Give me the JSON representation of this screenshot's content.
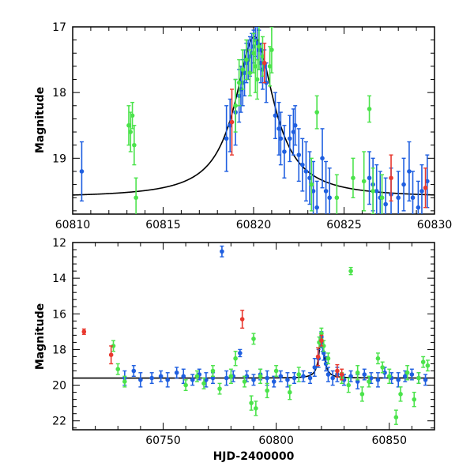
{
  "colors": {
    "blue": "#1f5fe0",
    "green": "#4be34b",
    "red": "#e8392f",
    "model": "#000000"
  },
  "chart_data": [
    {
      "type": "scatter",
      "ylabel": "Magnitude",
      "xlabel": "",
      "xlim": [
        60810,
        60830
      ],
      "ylim": [
        17.0,
        19.85
      ],
      "y_inverted": true,
      "xticks": [
        60810,
        60815,
        60820,
        60825,
        60830
      ],
      "yticks": [
        17,
        18,
        19
      ],
      "model": {
        "type": "lorentzian-peak",
        "t0": 60820.05,
        "baseline": 19.6,
        "peak": 17.15,
        "width": 1.3
      },
      "series": [
        {
          "color": "blue",
          "points": [
            [
              60810.5,
              19.2,
              0.45
            ],
            [
              60818.5,
              18.7,
              0.5
            ],
            [
              60818.7,
              18.5,
              0.4
            ],
            [
              60819.0,
              18.3,
              0.5
            ],
            [
              60819.2,
              18.05,
              0.4
            ],
            [
              60819.3,
              17.95,
              0.35
            ],
            [
              60819.4,
              17.85,
              0.35
            ],
            [
              60819.5,
              17.7,
              0.35
            ],
            [
              60819.6,
              17.55,
              0.3
            ],
            [
              60819.7,
              17.5,
              0.3
            ],
            [
              60819.8,
              17.45,
              0.3
            ],
            [
              60819.9,
              17.4,
              0.3
            ],
            [
              60820.0,
              17.3,
              0.25
            ],
            [
              60820.1,
              17.2,
              0.25
            ],
            [
              60820.2,
              17.25,
              0.25
            ],
            [
              60820.3,
              17.35,
              0.3
            ],
            [
              60820.4,
              17.55,
              0.3
            ],
            [
              60820.5,
              17.65,
              0.3
            ],
            [
              60820.6,
              17.6,
              0.25
            ],
            [
              60820.7,
              17.85,
              0.3
            ],
            [
              60821.2,
              18.35,
              0.35
            ],
            [
              60821.4,
              18.55,
              0.4
            ],
            [
              60821.5,
              18.7,
              0.4
            ],
            [
              60821.7,
              18.9,
              0.4
            ],
            [
              60822.0,
              18.7,
              0.35
            ],
            [
              60822.2,
              18.6,
              0.35
            ],
            [
              60822.3,
              18.5,
              0.3
            ],
            [
              60822.5,
              18.95,
              0.4
            ],
            [
              60822.7,
              19.1,
              0.4
            ],
            [
              60822.9,
              19.2,
              0.45
            ],
            [
              60823.1,
              19.3,
              0.4
            ],
            [
              60823.3,
              19.5,
              0.45
            ],
            [
              60823.5,
              19.75,
              0.4
            ],
            [
              60823.8,
              19.0,
              0.45
            ],
            [
              60824.0,
              19.5,
              0.45
            ],
            [
              60824.2,
              19.6,
              0.45
            ],
            [
              60826.4,
              19.3,
              0.4
            ],
            [
              60826.6,
              19.4,
              0.4
            ],
            [
              60826.8,
              19.5,
              0.4
            ],
            [
              60827.0,
              19.6,
              0.4
            ],
            [
              60827.3,
              19.7,
              0.4
            ],
            [
              60827.6,
              19.55,
              0.4
            ],
            [
              60828.0,
              19.6,
              0.4
            ],
            [
              60828.3,
              19.4,
              0.4
            ],
            [
              60828.6,
              19.2,
              0.45
            ],
            [
              60828.8,
              19.6,
              0.4
            ],
            [
              60829.1,
              19.75,
              0.4
            ],
            [
              60829.3,
              19.5,
              0.4
            ],
            [
              60829.6,
              19.35,
              0.4
            ]
          ]
        },
        {
          "color": "green",
          "points": [
            [
              60813.1,
              18.5,
              0.3
            ],
            [
              60813.2,
              18.6,
              0.3
            ],
            [
              60813.3,
              18.35,
              0.2
            ],
            [
              60813.4,
              18.8,
              0.3
            ],
            [
              60813.5,
              19.6,
              0.3
            ],
            [
              60819.0,
              18.2,
              0.4
            ],
            [
              60819.2,
              17.85,
              0.35
            ],
            [
              60819.4,
              17.65,
              0.3
            ],
            [
              60819.6,
              17.5,
              0.3
            ],
            [
              60819.8,
              17.7,
              0.35
            ],
            [
              60820.0,
              17.4,
              0.3
            ],
            [
              60820.1,
              17.6,
              0.4
            ],
            [
              60820.2,
              17.8,
              0.3
            ],
            [
              60820.3,
              17.3,
              0.35
            ],
            [
              60820.5,
              17.45,
              0.3
            ],
            [
              60820.9,
              17.6,
              0.3
            ],
            [
              60821.0,
              17.35,
              0.35
            ],
            [
              60823.2,
              19.4,
              0.4
            ],
            [
              60823.5,
              18.3,
              0.25
            ],
            [
              60824.6,
              19.6,
              0.35
            ],
            [
              60825.5,
              19.3,
              0.3
            ],
            [
              60826.1,
              19.35,
              0.45
            ],
            [
              60826.4,
              18.25,
              0.2
            ],
            [
              60826.6,
              19.5,
              0.35
            ],
            [
              60827.1,
              19.6,
              0.35
            ]
          ]
        },
        {
          "color": "red",
          "points": [
            [
              60818.8,
              18.45,
              0.5
            ],
            [
              60820.6,
              17.55,
              0.3
            ],
            [
              60827.6,
              19.3,
              0.35
            ],
            [
              60829.5,
              19.45,
              0.3
            ]
          ]
        }
      ]
    },
    {
      "type": "scatter",
      "ylabel": "Magnitude",
      "xlabel": "HJD-2400000",
      "xlim": [
        60710,
        60870
      ],
      "ylim": [
        12,
        22.5
      ],
      "y_inverted": true,
      "xticks": [
        60750,
        60800,
        60850
      ],
      "yticks": [
        12,
        14,
        16,
        18,
        20,
        22
      ],
      "model": {
        "type": "lorentzian-peak",
        "t0": 60820.05,
        "baseline": 19.6,
        "peak": 17.15,
        "width": 1.3
      },
      "series": [
        {
          "color": "blue",
          "points": [
            [
              60733,
              19.6,
              0.4
            ],
            [
              60737,
              19.2,
              0.3
            ],
            [
              60740,
              19.7,
              0.4
            ],
            [
              60745,
              19.6,
              0.3
            ],
            [
              60749,
              19.5,
              0.3
            ],
            [
              60752,
              19.7,
              0.4
            ],
            [
              60756,
              19.3,
              0.3
            ],
            [
              60759,
              19.5,
              0.4
            ],
            [
              60763,
              19.7,
              0.3
            ],
            [
              60766,
              19.4,
              0.3
            ],
            [
              60769,
              19.7,
              0.4
            ],
            [
              60772,
              19.6,
              0.3
            ],
            [
              60776,
              12.5,
              0.3
            ],
            [
              60778,
              19.6,
              0.4
            ],
            [
              60781,
              19.5,
              0.3
            ],
            [
              60784,
              18.2,
              0.2
            ],
            [
              60787,
              19.5,
              0.3
            ],
            [
              60790,
              19.7,
              0.3
            ],
            [
              60793,
              19.4,
              0.3
            ],
            [
              60796,
              19.6,
              0.4
            ],
            [
              60799,
              19.8,
              0.3
            ],
            [
              60802,
              19.5,
              0.3
            ],
            [
              60805,
              19.7,
              0.4
            ],
            [
              60808,
              19.6,
              0.3
            ],
            [
              60812,
              19.5,
              0.3
            ],
            [
              60815,
              19.6,
              0.3
            ],
            [
              60817,
              19.0,
              0.5
            ],
            [
              60818.7,
              18.5,
              0.5
            ],
            [
              60819.5,
              17.6,
              0.3
            ],
            [
              60820,
              17.3,
              0.3
            ],
            [
              60820.5,
              17.8,
              0.3
            ],
            [
              60821,
              18.2,
              0.4
            ],
            [
              60822,
              18.8,
              0.4
            ],
            [
              60823,
              19.4,
              0.4
            ],
            [
              60825,
              19.6,
              0.4
            ],
            [
              60827,
              19.4,
              0.4
            ],
            [
              60830,
              19.7,
              0.3
            ],
            [
              60833,
              19.5,
              0.3
            ],
            [
              60836,
              19.8,
              0.4
            ],
            [
              60839,
              19.4,
              0.3
            ],
            [
              60842,
              19.6,
              0.3
            ],
            [
              60845,
              19.7,
              0.4
            ],
            [
              60848,
              19.3,
              0.3
            ],
            [
              60851,
              19.6,
              0.3
            ],
            [
              60854,
              19.7,
              0.4
            ],
            [
              60857,
              19.5,
              0.3
            ],
            [
              60860,
              19.4,
              0.3
            ],
            [
              60863,
              19.6,
              0.3
            ],
            [
              60866,
              19.7,
              0.3
            ]
          ]
        },
        {
          "color": "green",
          "points": [
            [
              60728,
              17.8,
              0.3
            ],
            [
              60730,
              19.1,
              0.3
            ],
            [
              60733,
              19.8,
              0.3
            ],
            [
              60760,
              20.0,
              0.3
            ],
            [
              60765,
              19.5,
              0.3
            ],
            [
              60768,
              19.9,
              0.3
            ],
            [
              60772,
              19.2,
              0.3
            ],
            [
              60775,
              20.2,
              0.3
            ],
            [
              60780,
              19.5,
              0.4
            ],
            [
              60782,
              18.5,
              0.4
            ],
            [
              60786,
              19.8,
              0.3
            ],
            [
              60789,
              21.0,
              0.4
            ],
            [
              60790,
              17.4,
              0.3
            ],
            [
              60791,
              21.3,
              0.4
            ],
            [
              60793,
              19.5,
              0.4
            ],
            [
              60796,
              20.3,
              0.4
            ],
            [
              60800,
              19.2,
              0.3
            ],
            [
              60806,
              20.4,
              0.4
            ],
            [
              60810,
              19.4,
              0.4
            ],
            [
              60819,
              17.6,
              0.3
            ],
            [
              60820,
              17.1,
              0.3
            ],
            [
              60821,
              17.8,
              0.3
            ],
            [
              60823,
              18.5,
              0.3
            ],
            [
              60829,
              19.6,
              0.3
            ],
            [
              60832,
              20.0,
              0.4
            ],
            [
              60833,
              13.6,
              0.2
            ],
            [
              60836,
              19.3,
              0.4
            ],
            [
              60838,
              20.5,
              0.4
            ],
            [
              60841,
              19.8,
              0.3
            ],
            [
              60845,
              18.5,
              0.3
            ],
            [
              60847,
              19.0,
              0.3
            ],
            [
              60850,
              19.5,
              0.4
            ],
            [
              60853,
              21.8,
              0.4
            ],
            [
              60855,
              20.5,
              0.4
            ],
            [
              60858,
              19.3,
              0.4
            ],
            [
              60861,
              20.8,
              0.4
            ],
            [
              60863,
              19.6,
              0.3
            ],
            [
              60865,
              18.7,
              0.3
            ],
            [
              60867,
              18.9,
              0.3
            ]
          ]
        },
        {
          "color": "red",
          "points": [
            [
              60715,
              17.0,
              0.15
            ],
            [
              60727,
              18.3,
              0.5
            ],
            [
              60785,
              16.3,
              0.5
            ],
            [
              60818.5,
              18.4,
              0.5
            ],
            [
              60820,
              17.5,
              0.3
            ],
            [
              60827,
              19.2,
              0.35
            ],
            [
              60829,
              19.4,
              0.3
            ]
          ]
        }
      ]
    }
  ]
}
